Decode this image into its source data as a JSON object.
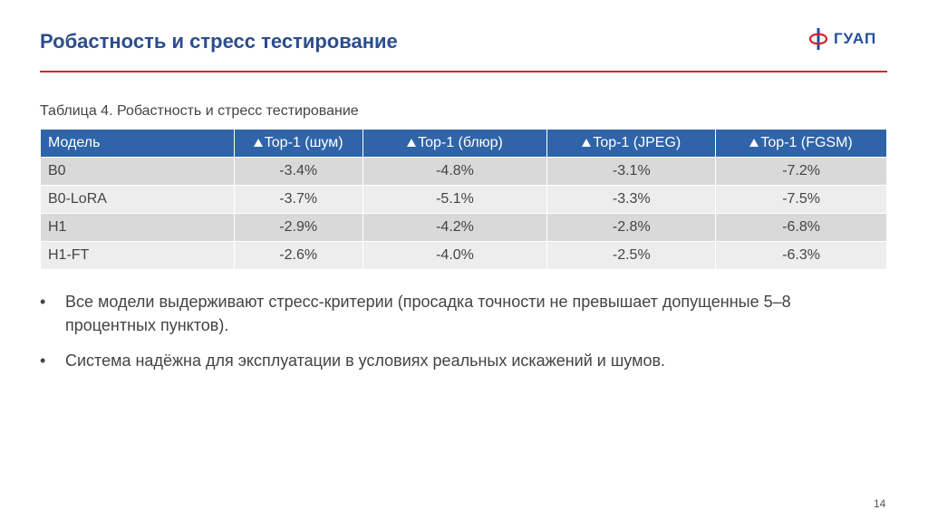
{
  "slide": {
    "title": "Робастность и стресс тестирование",
    "logo_text": "ГУАП",
    "page_number": "14"
  },
  "colors": {
    "title": "#2c4d8c",
    "rule": "#d6212e",
    "table_header": "#2f64a8",
    "row_dark": "#d9d9d9",
    "row_light": "#ededed"
  },
  "table": {
    "caption": "Таблица 4. Робастность и стресс тестирование",
    "headers": [
      "Модель",
      "Top-1 (шум)",
      "Top-1 (блюр)",
      "Top-1 (JPEG)",
      "Top-1 (FGSM)"
    ],
    "rows": [
      [
        "B0",
        "-3.4%",
        "-4.8%",
        "-3.1%",
        "-7.2%"
      ],
      [
        "B0-LoRA",
        "-3.7%",
        "-5.1%",
        "-3.3%",
        "-7.5%"
      ],
      [
        "H1",
        "-2.9%",
        "-4.2%",
        "-2.8%",
        "-6.8%"
      ],
      [
        "H1-FT",
        "-2.6%",
        "-4.0%",
        "-2.5%",
        "-6.3%"
      ]
    ]
  },
  "bullets": [
    "Все модели выдерживают стресс-критерии (просадка точности не превышает допущенные 5–8 процентных пунктов).",
    "Система надёжна для эксплуатации в условиях реальных искажений и шумов."
  ],
  "bullet_symbol": "•"
}
